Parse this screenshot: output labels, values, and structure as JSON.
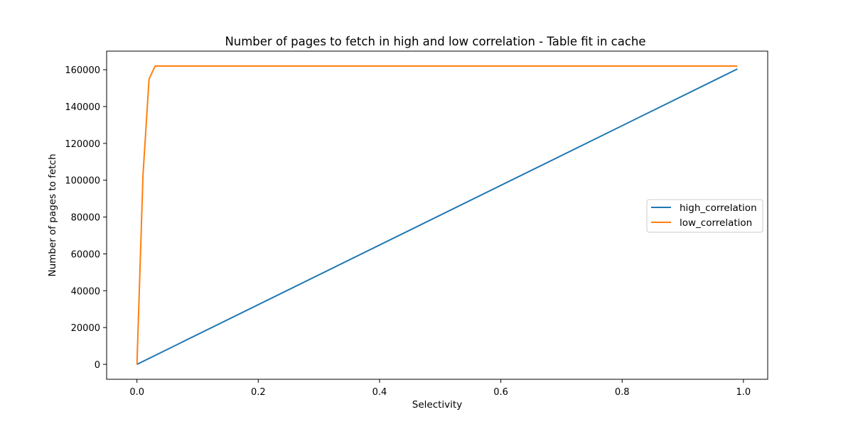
{
  "chart_data": {
    "type": "line",
    "title": "Number of pages to fetch in high and low correlation - Table fit in cache",
    "xlabel": "Selectivity",
    "ylabel": "Number of pages to fetch",
    "xlim": [
      -0.05,
      1.04
    ],
    "ylim": [
      -8100,
      170100
    ],
    "xticks": [
      0.0,
      0.2,
      0.4,
      0.6,
      0.8,
      1.0
    ],
    "xtick_labels": [
      "0.0",
      "0.2",
      "0.4",
      "0.6",
      "0.8",
      "1.0"
    ],
    "yticks": [
      0,
      20000,
      40000,
      60000,
      80000,
      100000,
      120000,
      140000,
      160000
    ],
    "ytick_labels": [
      "0",
      "20000",
      "40000",
      "60000",
      "80000",
      "100000",
      "120000",
      "140000",
      "160000"
    ],
    "grid": false,
    "legend_position": "center-right",
    "series": [
      {
        "name": "high_correlation",
        "color": "#1f77b4",
        "x": [
          0.0,
          0.99
        ],
        "y": [
          0,
          160400
        ]
      },
      {
        "name": "low_correlation",
        "color": "#ff7f0e",
        "x": [
          0.0,
          0.01,
          0.02,
          0.03,
          0.99
        ],
        "y": [
          0,
          103000,
          155000,
          162000,
          162000
        ]
      }
    ]
  }
}
